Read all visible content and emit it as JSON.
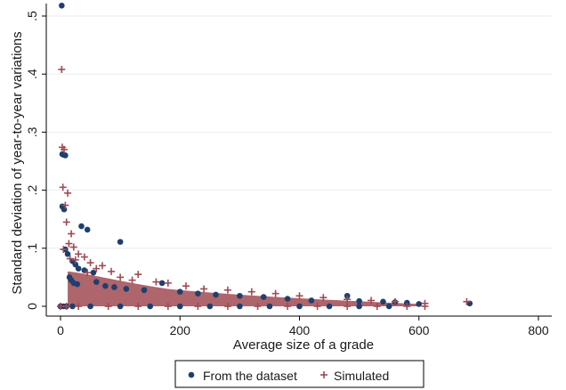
{
  "chart_data": {
    "type": "scatter",
    "xlabel": "Average size of a grade",
    "ylabel": "Standard deviation of year-to-year variations",
    "xlim": [
      0,
      800
    ],
    "ylim": [
      0,
      0.5
    ],
    "xticks": [
      0,
      200,
      400,
      600,
      800
    ],
    "yticks": [
      0,
      0.1,
      0.2,
      0.3,
      0.4,
      0.5
    ],
    "x_tick_labels": [
      "0",
      "200",
      "400",
      "600",
      "800"
    ],
    "y_tick_labels": [
      "0",
      ".1",
      ".2",
      ".3",
      ".4",
      ".5"
    ],
    "grid": "horizontal",
    "legend_position": "bottom",
    "series": [
      {
        "name": "From the dataset",
        "marker": "circle",
        "color": "#1f3f6e",
        "points": [
          [
            2,
            0.518
          ],
          [
            3,
            0.262
          ],
          [
            5,
            0.261
          ],
          [
            8,
            0.26
          ],
          [
            3,
            0.172
          ],
          [
            6,
            0.167
          ],
          [
            8,
            0.098
          ],
          [
            12,
            0.09
          ],
          [
            35,
            0.138
          ],
          [
            45,
            0.132
          ],
          [
            100,
            0.111
          ],
          [
            20,
            0.078
          ],
          [
            25,
            0.072
          ],
          [
            30,
            0.065
          ],
          [
            40,
            0.062
          ],
          [
            55,
            0.058
          ],
          [
            15,
            0.05
          ],
          [
            18,
            0.045
          ],
          [
            22,
            0.04
          ],
          [
            28,
            0.038
          ],
          [
            60,
            0.042
          ],
          [
            75,
            0.035
          ],
          [
            90,
            0.033
          ],
          [
            110,
            0.03
          ],
          [
            140,
            0.028
          ],
          [
            170,
            0.04
          ],
          [
            200,
            0.025
          ],
          [
            230,
            0.022
          ],
          [
            260,
            0.02
          ],
          [
            300,
            0.018
          ],
          [
            340,
            0.016
          ],
          [
            380,
            0.013
          ],
          [
            420,
            0.01
          ],
          [
            480,
            0.018
          ],
          [
            500,
            0.009
          ],
          [
            540,
            0.008
          ],
          [
            560,
            0.007
          ],
          [
            580,
            0.006
          ],
          [
            600,
            0.004
          ],
          [
            685,
            0.005
          ],
          [
            0,
            0.0
          ],
          [
            5,
            0.0
          ],
          [
            10,
            0.0
          ],
          [
            20,
            0.0
          ],
          [
            50,
            0.0
          ],
          [
            100,
            0.0
          ],
          [
            150,
            0.0
          ],
          [
            200,
            0.0
          ],
          [
            250,
            0.0
          ],
          [
            300,
            0.0
          ],
          [
            350,
            0.0
          ],
          [
            400,
            0.0
          ],
          [
            450,
            0.0
          ],
          [
            500,
            0.0
          ],
          [
            550,
            0.0
          ]
        ]
      },
      {
        "name": "Simulated",
        "marker": "plus",
        "color": "#a04a52",
        "points": [
          [
            2,
            0.408
          ],
          [
            3,
            0.274
          ],
          [
            6,
            0.27
          ],
          [
            4,
            0.205
          ],
          [
            12,
            0.195
          ],
          [
            8,
            0.174
          ],
          [
            10,
            0.145
          ],
          [
            18,
            0.125
          ],
          [
            14,
            0.108
          ],
          [
            22,
            0.102
          ],
          [
            5,
            0.098
          ],
          [
            30,
            0.09
          ],
          [
            40,
            0.085
          ],
          [
            16,
            0.082
          ],
          [
            25,
            0.08
          ],
          [
            50,
            0.075
          ],
          [
            70,
            0.07
          ],
          [
            60,
            0.065
          ],
          [
            85,
            0.06
          ],
          [
            45,
            0.058
          ],
          [
            130,
            0.055
          ],
          [
            100,
            0.05
          ],
          [
            120,
            0.045
          ],
          [
            160,
            0.042
          ],
          [
            180,
            0.04
          ],
          [
            210,
            0.035
          ],
          [
            240,
            0.03
          ],
          [
            280,
            0.028
          ],
          [
            320,
            0.025
          ],
          [
            360,
            0.022
          ],
          [
            400,
            0.018
          ],
          [
            440,
            0.015
          ],
          [
            480,
            0.012
          ],
          [
            520,
            0.01
          ],
          [
            560,
            0.008
          ],
          [
            610,
            0.005
          ],
          [
            680,
            0.008
          ],
          [
            0,
            0.0
          ],
          [
            10,
            0.0
          ],
          [
            30,
            0.0
          ],
          [
            80,
            0.0
          ],
          [
            130,
            0.0
          ],
          [
            180,
            0.0
          ],
          [
            230,
            0.0
          ],
          [
            280,
            0.0
          ],
          [
            330,
            0.0
          ],
          [
            380,
            0.0
          ],
          [
            430,
            0.0
          ],
          [
            480,
            0.0
          ],
          [
            530,
            0.0
          ],
          [
            580,
            0.0
          ],
          [
            610,
            0.0
          ]
        ]
      }
    ]
  },
  "legend": {
    "items": [
      {
        "label": "From the dataset"
      },
      {
        "label": "Simulated"
      }
    ]
  }
}
